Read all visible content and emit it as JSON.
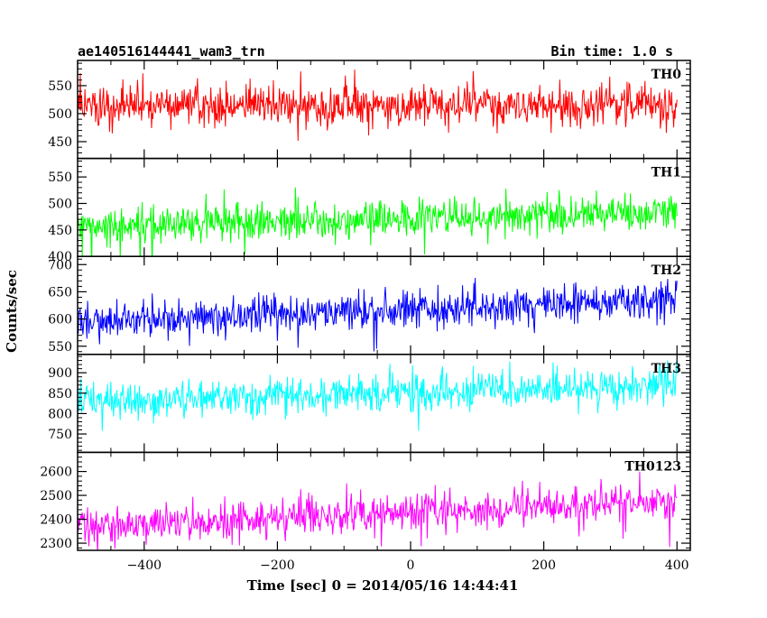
{
  "header": {
    "title": "ae140516144441_wam3_trn",
    "bin_time": "Bin time: 1.0 s"
  },
  "chart_data": {
    "type": "line",
    "title": "ae140516144441_wam3_trn",
    "subtitle": "Bin time: 1.0 s",
    "xlabel": "Time [sec] 0 = 2014/05/16 14:44:41",
    "ylabel": "Counts/sec",
    "xlim": [
      -500,
      420
    ],
    "x_range": [
      -500,
      400
    ],
    "x_ticks": [
      -400,
      -200,
      0,
      200,
      400
    ],
    "x_tick_labels": [
      "−400",
      "−200",
      "0",
      "200",
      "400"
    ],
    "grid": false,
    "panels": [
      {
        "name": "TH0",
        "color": "#ff0000",
        "ylim": [
          420,
          595
        ],
        "y_ticks": [
          450,
          500,
          550
        ],
        "y_tick_labels": [
          "450",
          "500",
          "550"
        ],
        "mean_start": 515,
        "mean_end": 515,
        "noise": 18,
        "spike": 30
      },
      {
        "name": "TH1",
        "color": "#00ff00",
        "ylim": [
          400,
          585
        ],
        "y_ticks": [
          400,
          450,
          500,
          550
        ],
        "y_tick_labels": [
          "400",
          "450",
          "500",
          "550"
        ],
        "mean_start": 455,
        "mean_end": 485,
        "noise": 17,
        "spike": 30
      },
      {
        "name": "TH2",
        "color": "#0000ff",
        "ylim": [
          535,
          715
        ],
        "y_ticks": [
          550,
          600,
          650,
          700
        ],
        "y_tick_labels": [
          "550",
          "600",
          "650",
          "700"
        ],
        "mean_start": 595,
        "mean_end": 635,
        "noise": 17,
        "spike": 30
      },
      {
        "name": "TH3",
        "color": "#00ffff",
        "ylim": [
          705,
          945
        ],
        "y_ticks": [
          750,
          800,
          850,
          900
        ],
        "y_tick_labels": [
          "750",
          "800",
          "850",
          "900"
        ],
        "mean_start": 830,
        "mean_end": 870,
        "noise": 22,
        "spike": 38
      },
      {
        "name": "TH0123",
        "color": "#ff00ff",
        "ylim": [
          2270,
          2680
        ],
        "y_ticks": [
          2300,
          2400,
          2500,
          2600
        ],
        "y_tick_labels": [
          "2300",
          "2400",
          "2500",
          "2600"
        ],
        "mean_start": 2365,
        "mean_end": 2480,
        "noise": 38,
        "spike": 70
      }
    ]
  }
}
